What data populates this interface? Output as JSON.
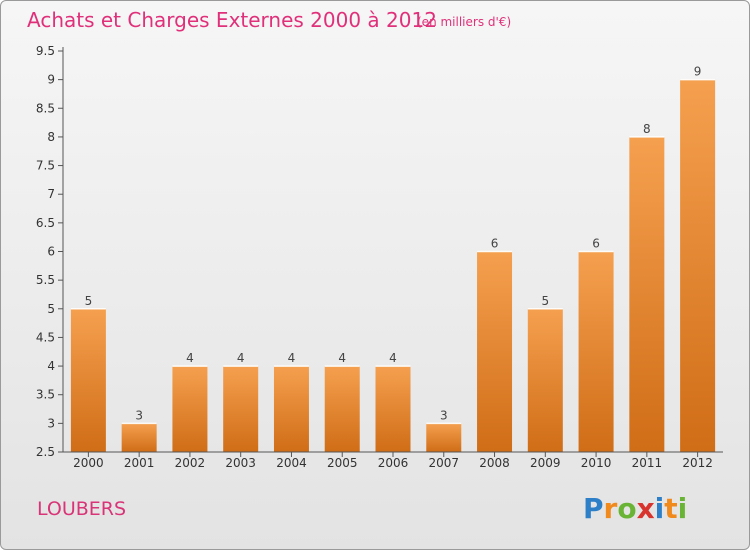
{
  "chart_data": {
    "type": "bar",
    "title": "Achats et Charges Externes 2000 à 2012",
    "unit_note": "(en milliers d'€)",
    "categories": [
      "2000",
      "2001",
      "2002",
      "2003",
      "2004",
      "2005",
      "2006",
      "2007",
      "2008",
      "2009",
      "2010",
      "2011",
      "2012"
    ],
    "values": [
      5,
      3,
      4,
      4,
      4,
      4,
      4,
      3,
      6,
      5,
      6,
      8,
      9
    ],
    "data_labels": [
      "5",
      "3",
      "4",
      "4",
      "4",
      "4",
      "4",
      "3",
      "6",
      "5",
      "6",
      "8",
      "9"
    ],
    "ylim": [
      2.5,
      9.5
    ],
    "yticks": [
      "2.5",
      "3",
      "3.5",
      "4",
      "4.5",
      "5",
      "5.5",
      "6",
      "6.5",
      "7",
      "7.5",
      "8",
      "8.5",
      "9",
      "9.5"
    ],
    "grid": false,
    "bar_color_top": "#f5a04f",
    "bar_color_bottom": "#d06d17"
  },
  "place": "LOUBERS",
  "logo": {
    "letters": [
      "P",
      "r",
      "o",
      "x",
      "i",
      "t",
      "i"
    ],
    "colors": [
      "#2d7fc8",
      "#f08a1d",
      "#69b335",
      "#d8332c",
      "#2d7fc8",
      "#f08a1d",
      "#69b335"
    ]
  }
}
